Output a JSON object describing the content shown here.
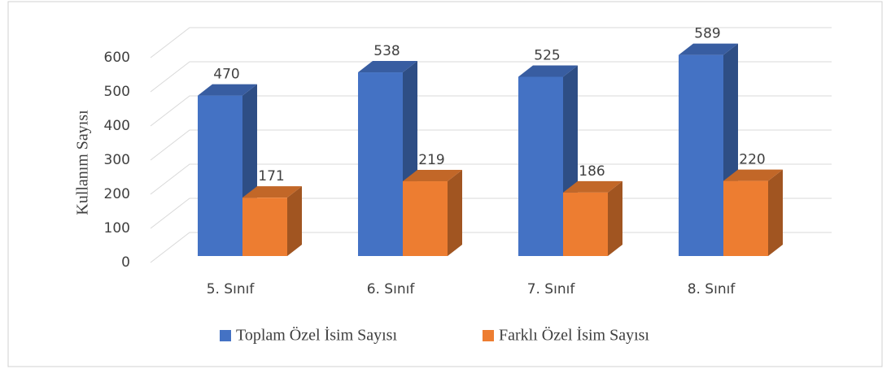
{
  "chart_data": {
    "type": "bar3d",
    "y_label": "Kullanım Sayısı",
    "categories": [
      "5. Sınıf",
      "6. Sınıf",
      "7. Sınıf",
      "8. Sınıf"
    ],
    "series": [
      {
        "name": "Toplam Özel İsim Sayısı",
        "color": "#4472c4",
        "values": [
          470,
          538,
          525,
          589
        ]
      },
      {
        "name": "Farklı Özel İsim Sayısı",
        "color": "#ed7d31",
        "values": [
          171,
          219,
          186,
          220
        ]
      }
    ],
    "ylim": [
      0,
      600
    ],
    "yticks": [
      0,
      100,
      200,
      300,
      400,
      500,
      600
    ],
    "grid": true,
    "legend": "bottom"
  }
}
